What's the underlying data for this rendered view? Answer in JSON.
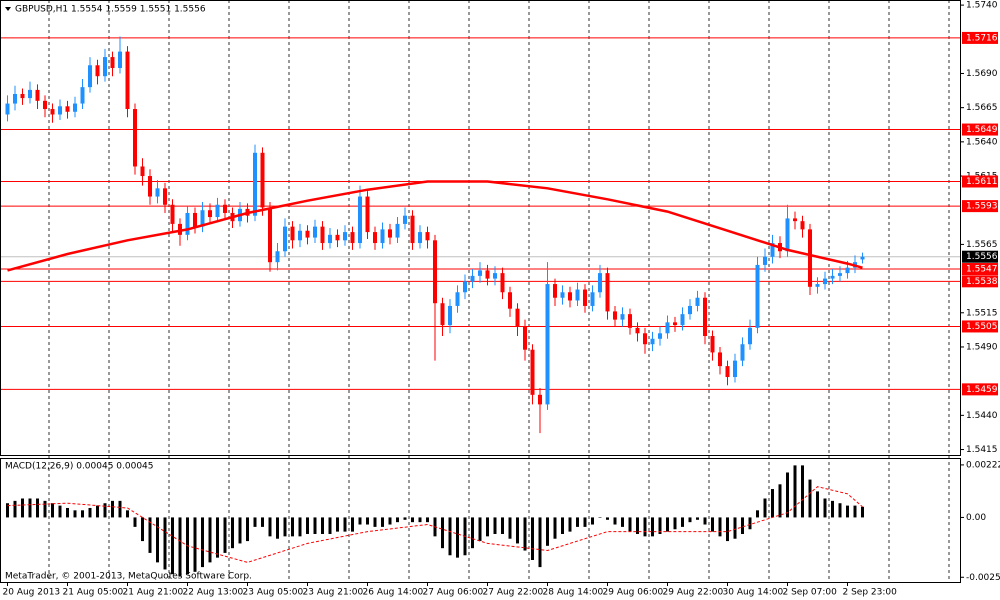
{
  "chart_data": [
    {
      "type": "candlestick",
      "title": "GBPUSD,H1  1.5554 1.5559 1.5551 1.5556",
      "footer": "MetaTrader, © 2001-2013, MetaQuotes Software Corp.",
      "up_color": "#1e90ff",
      "down_color": "#ff0000",
      "xlim": [
        -1,
        127
      ],
      "xticks": [
        {
          "value": 0,
          "label": "20 Aug 2013"
        },
        {
          "value": 8,
          "label": "21 Aug 05:00"
        },
        {
          "value": 16,
          "label": "21 Aug 21:00"
        },
        {
          "value": 24,
          "label": "22 Aug 13:00"
        },
        {
          "value": 32,
          "label": "23 Aug 05:00"
        },
        {
          "value": 40,
          "label": "23 Aug 21:00"
        },
        {
          "value": 48,
          "label": "26 Aug 14:00"
        },
        {
          "value": 56,
          "label": "27 Aug 06:00"
        },
        {
          "value": 64,
          "label": "27 Aug 22:00"
        },
        {
          "value": 72,
          "label": "28 Aug 14:00"
        },
        {
          "value": 80,
          "label": "29 Aug 06:00"
        },
        {
          "value": 88,
          "label": "29 Aug 22:00"
        },
        {
          "value": 96,
          "label": "30 Aug 14:00"
        },
        {
          "value": 104,
          "label": "2 Sep 07:00"
        },
        {
          "value": 112,
          "label": "2 Sep 23:00"
        }
      ],
      "ylim": [
        1.5411,
        1.5743
      ],
      "yticks": [
        {
          "value": 1.574,
          "label": "1.5740"
        },
        {
          "value": 1.569,
          "label": "1.5690"
        },
        1.5665,
        {
          "value": 1.564,
          "label": "1.5640"
        },
        1.5615,
        1.5565,
        1.5515,
        {
          "value": 1.549,
          "label": "1.5490"
        },
        {
          "value": 1.544,
          "label": "1.5440"
        },
        1.5415
      ],
      "levels": {
        "color": "#ff0000",
        "values": [
          1.5716,
          1.5649,
          1.5611,
          1.5593,
          1.5547,
          1.5538,
          1.5505,
          1.5459
        ]
      },
      "current_price": 1.5556,
      "open": [
        1.566,
        1.5668,
        1.5675,
        1.5672,
        1.5678,
        1.567,
        1.5664,
        1.566,
        1.5666,
        1.5662,
        1.5668,
        1.568,
        1.5696,
        1.5688,
        1.5702,
        1.5694,
        1.5706,
        1.5664,
        1.5622,
        1.5615,
        1.56,
        1.5606,
        1.5594,
        1.558,
        1.5572,
        1.5588,
        1.5578,
        1.559,
        1.5585,
        1.5594,
        1.5588,
        1.5582,
        1.5591,
        1.5586,
        1.5632,
        1.5592,
        1.5552,
        1.556,
        1.5578,
        1.5568,
        1.5575,
        1.557,
        1.5578,
        1.5566,
        1.5572,
        1.5568,
        1.5574,
        1.5566,
        1.56,
        1.5574,
        1.5566,
        1.5576,
        1.557,
        1.558,
        1.5586,
        1.5566,
        1.5574,
        1.5568,
        1.5522,
        1.5506,
        1.552,
        1.553,
        1.5538,
        1.5542,
        1.5546,
        1.554,
        1.5544,
        1.553,
        1.5518,
        1.5505,
        1.5488,
        1.5455,
        1.5448,
        1.5536,
        1.5526,
        1.553,
        1.5524,
        1.5532,
        1.552,
        1.553,
        1.5544,
        1.5516,
        1.551,
        1.5514,
        1.5504,
        1.55,
        1.5492,
        1.5496,
        1.55,
        1.5508,
        1.5506,
        1.5514,
        1.552,
        1.5526,
        1.5498,
        1.5486,
        1.5476,
        1.5468,
        1.548,
        1.5492,
        1.5504,
        1.555,
        1.5556,
        1.5566,
        1.556,
        1.5584,
        1.5582,
        1.5576,
        1.5534,
        1.5536,
        1.554,
        1.5542,
        1.5544,
        1.5548,
        1.5554
      ],
      "high": [
        1.5674,
        1.5681,
        1.5679,
        1.5684,
        1.5682,
        1.5674,
        1.5668,
        1.5671,
        1.567,
        1.5673,
        1.5686,
        1.5702,
        1.57,
        1.5708,
        1.5706,
        1.5717,
        1.571,
        1.5668,
        1.5628,
        1.562,
        1.5612,
        1.561,
        1.5598,
        1.5584,
        1.5593,
        1.5592,
        1.5596,
        1.5595,
        1.5599,
        1.5598,
        1.5592,
        1.5596,
        1.5595,
        1.5638,
        1.5636,
        1.5596,
        1.5566,
        1.5584,
        1.5582,
        1.558,
        1.5579,
        1.5583,
        1.5582,
        1.5577,
        1.5576,
        1.5579,
        1.5578,
        1.5608,
        1.5604,
        1.5578,
        1.5581,
        1.558,
        1.5585,
        1.5592,
        1.559,
        1.5579,
        1.5578,
        1.5572,
        1.5526,
        1.5525,
        1.5535,
        1.5543,
        1.5547,
        1.5552,
        1.555,
        1.5549,
        1.5548,
        1.5534,
        1.5522,
        1.551,
        1.5492,
        1.546,
        1.5552,
        1.554,
        1.5535,
        1.5534,
        1.5537,
        1.5536,
        1.5535,
        1.555,
        1.5548,
        1.552,
        1.5519,
        1.5518,
        1.5508,
        1.5504,
        1.5501,
        1.5505,
        1.5513,
        1.5512,
        1.5519,
        1.5525,
        1.5531,
        1.553,
        1.5502,
        1.549,
        1.548,
        1.5485,
        1.5497,
        1.551,
        1.5556,
        1.5562,
        1.5572,
        1.5571,
        1.5594,
        1.5589,
        1.5586,
        1.558,
        1.5541,
        1.5545,
        1.5547,
        1.5549,
        1.5553,
        1.5557,
        1.5559
      ],
      "low": [
        1.5655,
        1.5663,
        1.5667,
        1.5668,
        1.5664,
        1.5658,
        1.5654,
        1.5656,
        1.5657,
        1.5658,
        1.5664,
        1.5676,
        1.5682,
        1.5684,
        1.5688,
        1.569,
        1.5658,
        1.5616,
        1.5608,
        1.5594,
        1.5595,
        1.5588,
        1.5574,
        1.5564,
        1.5568,
        1.5573,
        1.5574,
        1.558,
        1.5581,
        1.5583,
        1.5577,
        1.5578,
        1.5581,
        1.5582,
        1.5586,
        1.5545,
        1.5546,
        1.5556,
        1.5562,
        1.5563,
        1.5565,
        1.5566,
        1.5561,
        1.5562,
        1.5563,
        1.5564,
        1.5561,
        1.5562,
        1.5569,
        1.5561,
        1.5562,
        1.5565,
        1.5566,
        1.5576,
        1.5561,
        1.5562,
        1.5562,
        1.548,
        1.5498,
        1.55,
        1.5515,
        1.5525,
        1.5533,
        1.5537,
        1.5535,
        1.5535,
        1.5525,
        1.5512,
        1.5498,
        1.548,
        1.5448,
        1.5427,
        1.5444,
        1.552,
        1.5521,
        1.5519,
        1.552,
        1.5515,
        1.5516,
        1.5526,
        1.551,
        1.5505,
        1.5505,
        1.5499,
        1.5494,
        1.5485,
        1.5487,
        1.5491,
        1.5496,
        1.5501,
        1.5502,
        1.551,
        1.5516,
        1.5492,
        1.548,
        1.547,
        1.5462,
        1.5464,
        1.5476,
        1.5488,
        1.55,
        1.5545,
        1.5551,
        1.5555,
        1.5556,
        1.5576,
        1.557,
        1.5528,
        1.5529,
        1.5532,
        1.5536,
        1.5538,
        1.554,
        1.5544,
        1.5551
      ],
      "close": [
        1.5668,
        1.5675,
        1.5672,
        1.5678,
        1.567,
        1.5664,
        1.566,
        1.5666,
        1.5662,
        1.5668,
        1.568,
        1.5696,
        1.5688,
        1.5702,
        1.5694,
        1.5706,
        1.5664,
        1.5622,
        1.5615,
        1.56,
        1.5606,
        1.5594,
        1.558,
        1.5572,
        1.5588,
        1.5578,
        1.559,
        1.5585,
        1.5594,
        1.5588,
        1.5582,
        1.5591,
        1.5586,
        1.5632,
        1.5592,
        1.5552,
        1.556,
        1.5578,
        1.5568,
        1.5575,
        1.557,
        1.5578,
        1.5566,
        1.5572,
        1.5568,
        1.5574,
        1.5566,
        1.56,
        1.5574,
        1.5566,
        1.5576,
        1.557,
        1.558,
        1.5586,
        1.5566,
        1.5574,
        1.5568,
        1.5522,
        1.5506,
        1.552,
        1.553,
        1.5538,
        1.5542,
        1.5546,
        1.554,
        1.5544,
        1.553,
        1.5518,
        1.5505,
        1.5488,
        1.5455,
        1.5448,
        1.5536,
        1.5526,
        1.553,
        1.5524,
        1.5532,
        1.552,
        1.553,
        1.5544,
        1.5516,
        1.551,
        1.5514,
        1.5504,
        1.55,
        1.5492,
        1.5496,
        1.55,
        1.5508,
        1.5506,
        1.5514,
        1.552,
        1.5526,
        1.5498,
        1.5486,
        1.5476,
        1.5468,
        1.548,
        1.5492,
        1.5504,
        1.555,
        1.5556,
        1.5566,
        1.556,
        1.5584,
        1.5582,
        1.5576,
        1.5534,
        1.5536,
        1.554,
        1.5542,
        1.5544,
        1.5548,
        1.5552,
        1.5556
      ],
      "ma": {
        "color": "#ff0000",
        "x": [
          0,
          8,
          16,
          24,
          32,
          40,
          48,
          56,
          64,
          72,
          80,
          88,
          96,
          104,
          112,
          114
        ],
        "values": [
          1.5546,
          1.5558,
          1.5568,
          1.5576,
          1.5588,
          1.5597,
          1.5605,
          1.5611,
          1.5611,
          1.5606,
          1.5598,
          1.5589,
          1.5575,
          1.5561,
          1.5551,
          1.5548
        ]
      }
    },
    {
      "type": "macd",
      "title": "MACD(12,26,9) 0.00045 0.00045",
      "color": "#000000",
      "ylim": [
        -0.00273,
        0.00247
      ],
      "yticks": [
        0.00222,
        {
          "value": 0,
          "label": "0.00"
        },
        -0.00253
      ],
      "values": [
        0.0006,
        0.0007,
        0.0008,
        0.0008,
        0.0008,
        0.0007,
        0.0006,
        0.0005,
        0.0004,
        0.0003,
        0.0003,
        0.0004,
        0.0005,
        0.0006,
        0.0007,
        0.0007,
        0.0003,
        -0.0004,
        -0.001,
        -0.0015,
        -0.0019,
        -0.0022,
        -0.0024,
        -0.0025,
        -0.0024,
        -0.0023,
        -0.0021,
        -0.0019,
        -0.0017,
        -0.0015,
        -0.0013,
        -0.0011,
        -0.001,
        -0.0004,
        -0.0004,
        -0.0008,
        -0.0009,
        -0.0008,
        -0.0008,
        -0.0008,
        -0.0007,
        -0.0007,
        -0.0007,
        -0.0007,
        -0.0006,
        -0.0006,
        -0.0006,
        -0.0003,
        -0.0003,
        -0.0004,
        -0.0004,
        -0.0003,
        -0.0002,
        -0.0001,
        -0.0002,
        -0.0002,
        -0.0002,
        -0.0008,
        -0.0013,
        -0.0016,
        -0.0017,
        -0.0016,
        -0.0013,
        -0.001,
        -0.0008,
        -0.0007,
        -0.0007,
        -0.0009,
        -0.0011,
        -0.0014,
        -0.0018,
        -0.0021,
        -0.0012,
        -0.0009,
        -0.0007,
        -0.0006,
        -0.0004,
        -0.0004,
        -0.0003,
        0.0,
        -0.0001,
        -0.0003,
        -0.0004,
        -0.0006,
        -0.0007,
        -0.0008,
        -0.0008,
        -0.0007,
        -0.0006,
        -0.0005,
        -0.0004,
        -0.0002,
        -0.0001,
        -0.0003,
        -0.0006,
        -0.0008,
        -0.001,
        -0.0009,
        -0.0007,
        -0.0005,
        0.0003,
        0.0008,
        0.0012,
        0.0014,
        0.0019,
        0.0022,
        0.0022,
        0.0016,
        0.0011,
        0.0008,
        0.0007,
        0.0006,
        0.0005,
        0.0005,
        0.00045
      ],
      "signal": {
        "color": "#ff0000",
        "x": [
          0,
          8,
          16,
          24,
          32,
          40,
          48,
          56,
          64,
          72,
          80,
          88,
          96,
          104,
          108,
          112,
          114
        ],
        "values": [
          0.0005,
          0.0006,
          0.0004,
          -0.0012,
          -0.0019,
          -0.0011,
          -0.0006,
          -0.0003,
          -0.0011,
          -0.0014,
          -0.0006,
          -0.0006,
          -0.0006,
          0.0002,
          0.0013,
          0.001,
          0.00045
        ]
      }
    }
  ]
}
